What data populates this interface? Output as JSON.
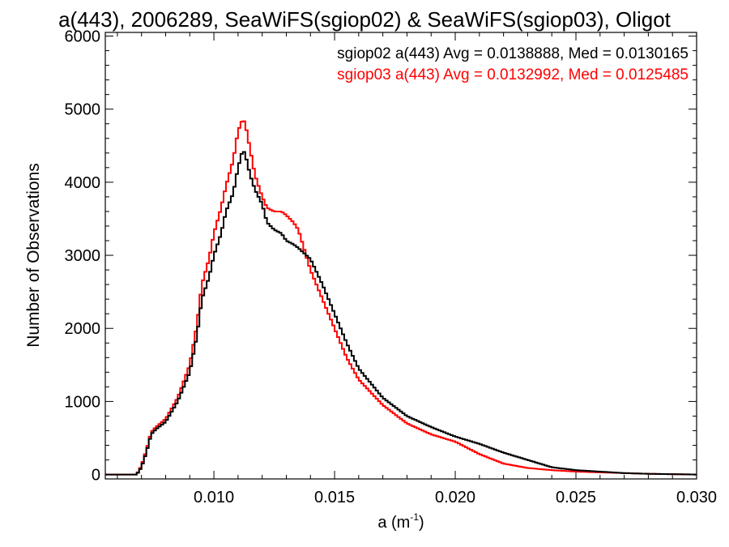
{
  "chart_data": {
    "type": "line",
    "title": "a(443), 2006289, SeaWiFS(sgiop02) & SeaWiFS(sgiop03), Oligot",
    "xlabel": "a (m",
    "xlabel_sup": "-1",
    "xlabel_close": ")",
    "ylabel": "Number of Observations",
    "xlim": [
      0.0055,
      0.03
    ],
    "ylim": [
      -60,
      6050
    ],
    "xticks": [
      0.01,
      0.015,
      0.02,
      0.025,
      0.03
    ],
    "xtick_labels": [
      "0.010",
      "0.015",
      "0.020",
      "0.025",
      "0.030"
    ],
    "yticks": [
      0,
      1000,
      2000,
      3000,
      4000,
      5000,
      6000
    ],
    "ytick_labels": [
      "0",
      "1000",
      "2000",
      "3000",
      "4000",
      "5000",
      "6000"
    ],
    "grid": false,
    "legend_placement": "top-right",
    "series": [
      {
        "name": "sgiop02 a(443) Avg = 0.0138888, Med = 0.0130165",
        "color": "#000000",
        "x": [
          0.0055,
          0.0068,
          0.007,
          0.0072,
          0.0074,
          0.0076,
          0.008,
          0.0085,
          0.009,
          0.0093,
          0.0095,
          0.0098,
          0.01,
          0.0103,
          0.0105,
          0.0108,
          0.011,
          0.0112,
          0.0113,
          0.0115,
          0.0117,
          0.012,
          0.0122,
          0.0125,
          0.0128,
          0.013,
          0.0133,
          0.0135,
          0.014,
          0.0145,
          0.015,
          0.0155,
          0.016,
          0.017,
          0.018,
          0.019,
          0.02,
          0.021,
          0.022,
          0.023,
          0.024,
          0.025,
          0.026,
          0.027,
          0.028,
          0.029,
          0.03
        ],
        "y": [
          0,
          0,
          100,
          300,
          550,
          620,
          720,
          1000,
          1400,
          1900,
          2400,
          2700,
          3000,
          3300,
          3600,
          3850,
          4200,
          4450,
          4380,
          4100,
          3900,
          3700,
          3450,
          3350,
          3300,
          3200,
          3150,
          3100,
          2950,
          2600,
          2200,
          1800,
          1450,
          1050,
          800,
          650,
          520,
          420,
          300,
          200,
          100,
          60,
          40,
          20,
          10,
          5,
          0
        ]
      },
      {
        "name": "sgiop03 a(443) Avg = 0.0132992, Med = 0.0125485",
        "color": "#ff0000",
        "x": [
          0.0055,
          0.0068,
          0.007,
          0.0072,
          0.0074,
          0.0076,
          0.008,
          0.0085,
          0.009,
          0.0093,
          0.0095,
          0.0098,
          0.01,
          0.0103,
          0.0105,
          0.0108,
          0.011,
          0.0112,
          0.0113,
          0.0115,
          0.0117,
          0.012,
          0.0122,
          0.0125,
          0.0128,
          0.013,
          0.0133,
          0.0135,
          0.014,
          0.0145,
          0.015,
          0.0155,
          0.016,
          0.017,
          0.018,
          0.019,
          0.02,
          0.021,
          0.022,
          0.023,
          0.024,
          0.025,
          0.026,
          0.027,
          0.028,
          0.029,
          0.03
        ],
        "y": [
          0,
          0,
          120,
          330,
          580,
          650,
          760,
          1050,
          1500,
          2050,
          2600,
          2950,
          3300,
          3650,
          3950,
          4300,
          4700,
          4870,
          4800,
          4450,
          4100,
          3800,
          3650,
          3600,
          3600,
          3550,
          3450,
          3350,
          2800,
          2400,
          2000,
          1600,
          1300,
          950,
          700,
          550,
          450,
          280,
          150,
          90,
          60,
          40,
          30,
          20,
          10,
          5,
          0
        ]
      }
    ]
  }
}
